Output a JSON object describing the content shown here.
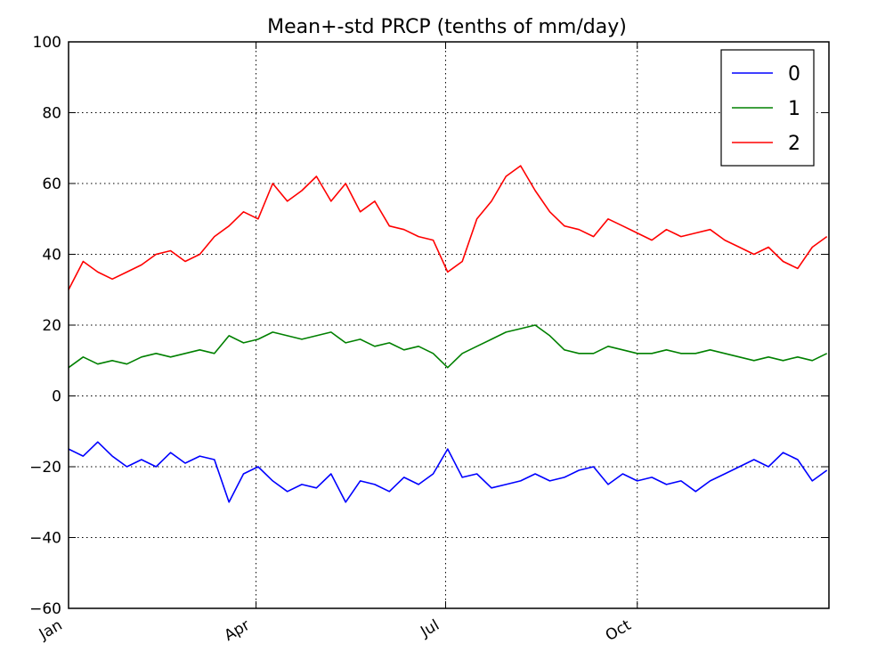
{
  "chart_data": {
    "type": "line",
    "title": "Mean+-std   PRCP (tenths of mm/day)",
    "xlabel": "",
    "ylabel": "",
    "x_tick_labels": [
      "Jan",
      "Apr",
      "Jul",
      "Oct"
    ],
    "x_tick_days": [
      0,
      90,
      181,
      273
    ],
    "x_range_days": [
      0,
      365
    ],
    "ylim": [
      -60,
      100
    ],
    "y_ticks": [
      -60,
      -40,
      -20,
      0,
      20,
      40,
      60,
      80,
      100
    ],
    "grid": true,
    "legend_position": "top-right",
    "x_days": [
      0,
      7,
      14,
      21,
      28,
      35,
      42,
      49,
      56,
      63,
      70,
      77,
      84,
      91,
      98,
      105,
      112,
      119,
      126,
      133,
      140,
      147,
      154,
      161,
      168,
      175,
      182,
      189,
      196,
      203,
      210,
      217,
      224,
      231,
      238,
      245,
      252,
      259,
      266,
      273,
      280,
      287,
      294,
      301,
      308,
      315,
      322,
      329,
      336,
      343,
      350,
      357,
      364
    ],
    "series": [
      {
        "name": "0",
        "color": "#0000ff",
        "values": [
          -15,
          -17,
          -13,
          -17,
          -20,
          -18,
          -20,
          -16,
          -19,
          -17,
          -18,
          -30,
          -22,
          -20,
          -24,
          -27,
          -25,
          -26,
          -22,
          -30,
          -24,
          -25,
          -27,
          -23,
          -25,
          -22,
          -15,
          -23,
          -22,
          -26,
          -25,
          -24,
          -22,
          -24,
          -23,
          -21,
          -20,
          -25,
          -22,
          -24,
          -23,
          -25,
          -24,
          -27,
          -24,
          -22,
          -20,
          -18,
          -20,
          -16,
          -18,
          -24,
          -21
        ]
      },
      {
        "name": "1",
        "color": "#008000",
        "values": [
          8,
          11,
          9,
          10,
          9,
          11,
          12,
          11,
          12,
          13,
          12,
          17,
          15,
          16,
          18,
          17,
          16,
          17,
          18,
          15,
          16,
          14,
          15,
          13,
          14,
          12,
          8,
          12,
          14,
          16,
          18,
          19,
          20,
          17,
          13,
          12,
          12,
          14,
          13,
          12,
          12,
          13,
          12,
          12,
          13,
          12,
          11,
          10,
          11,
          10,
          11,
          10,
          12
        ]
      },
      {
        "name": "2",
        "color": "#ff0000",
        "values": [
          30,
          38,
          35,
          33,
          35,
          37,
          40,
          41,
          38,
          40,
          45,
          48,
          52,
          50,
          60,
          55,
          58,
          62,
          55,
          60,
          52,
          55,
          48,
          47,
          45,
          44,
          35,
          38,
          50,
          55,
          62,
          65,
          58,
          52,
          48,
          47,
          45,
          50,
          48,
          46,
          44,
          47,
          45,
          46,
          47,
          44,
          42,
          40,
          42,
          38,
          36,
          42,
          45
        ]
      }
    ]
  }
}
